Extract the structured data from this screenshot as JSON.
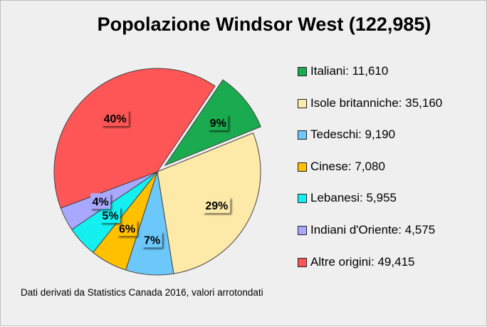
{
  "chart_data": {
    "type": "pie",
    "title": "Popolazione Windsor West (122,985)",
    "slices": [
      {
        "name": "Italiani",
        "value": 11610,
        "legend_label": "Italiani: 11,610",
        "pct_label": "9%",
        "color": "#1aaa4f",
        "exploded": true
      },
      {
        "name": "Isole britanniche",
        "value": 35160,
        "legend_label": "Isole britanniche: 35,160",
        "pct_label": "29%",
        "color": "#fde9a8",
        "exploded": false
      },
      {
        "name": "Tedeschi",
        "value": 9190,
        "legend_label": "Tedeschi: 9,190",
        "pct_label": "7%",
        "color": "#6cc7fb",
        "exploded": false
      },
      {
        "name": "Cinese",
        "value": 7080,
        "legend_label": "Cinese: 7,080",
        "pct_label": "6%",
        "color": "#ffc000",
        "exploded": false
      },
      {
        "name": "Lebanesi",
        "value": 5955,
        "legend_label": "Lebanesi: 5,955",
        "pct_label": "5%",
        "color": "#14f0f0",
        "exploded": false
      },
      {
        "name": "Indiani d'Oriente",
        "value": 4575,
        "legend_label": "Indiani d'Oriente: 4,575",
        "pct_label": "4%",
        "color": "#a8a8ff",
        "exploded": false
      },
      {
        "name": "Altre origini",
        "value": 49415,
        "legend_label": "Altre origini: 49,415",
        "pct_label": "40%",
        "color": "#fe5656",
        "exploded": false
      }
    ],
    "legend_position": "right",
    "note": "Dati derivati da Statistics Canada 2016, valori arrotondati"
  }
}
